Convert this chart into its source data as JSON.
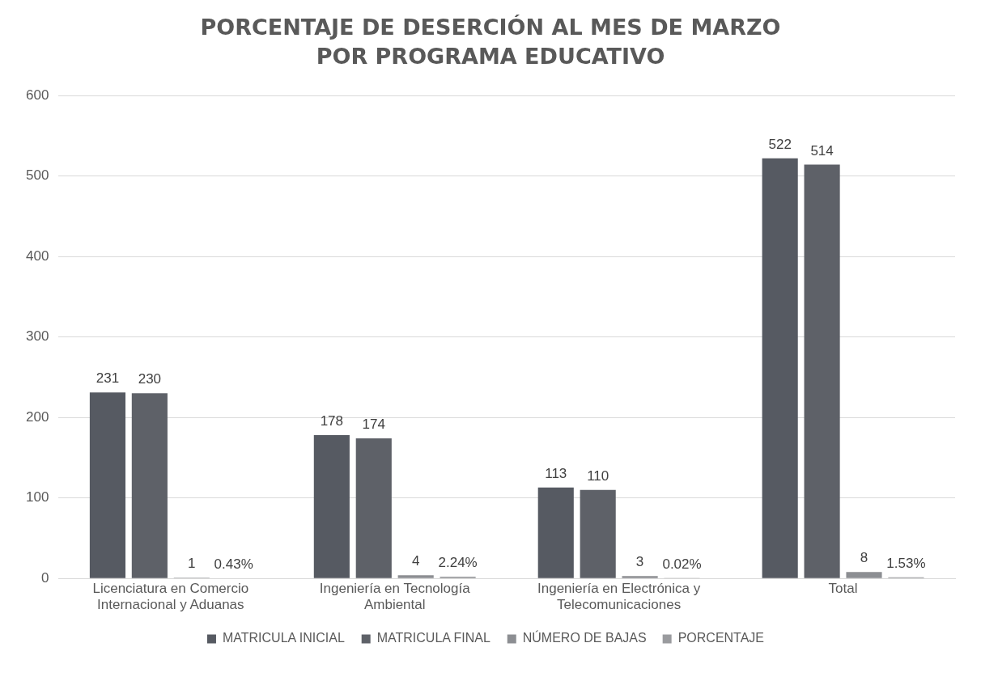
{
  "chart_data": {
    "type": "bar",
    "title": "PORCENTAJE DE DESERCIÓN AL MES DE MARZO POR PROGRAMA EDUCATIVO",
    "categories": [
      "Licenciatura en Comercio Internacional y Aduanas",
      "Ingeniería en Tecnología Ambiental",
      "Ingeniería en Electrónica y Telecomunicaciones",
      "Total"
    ],
    "series": [
      {
        "name": "MATRICULA INICIAL",
        "color": "#565a62",
        "values": [
          231,
          178,
          113,
          522
        ],
        "value_labels": [
          "231",
          "178",
          "113",
          "522"
        ]
      },
      {
        "name": "MATRICULA FINAL",
        "color": "#5e6168",
        "values": [
          230,
          174,
          110,
          514
        ],
        "value_labels": [
          "230",
          "174",
          "110",
          "514"
        ]
      },
      {
        "name": "NÚMERO DE BAJAS",
        "color": "#8c8e92",
        "values": [
          1,
          4,
          3,
          8
        ],
        "value_labels": [
          "1",
          "4",
          "3",
          "8"
        ]
      },
      {
        "name": "PORCENTAJE",
        "color": "#9a9b9e",
        "values": [
          0.43,
          2.24,
          0.02,
          1.53
        ],
        "value_labels": [
          "0.43%",
          "2.24%",
          "0.02%",
          "1.53%"
        ]
      }
    ],
    "ylim": [
      0,
      600
    ],
    "yticks": [
      0,
      100,
      200,
      300,
      400,
      500,
      600
    ],
    "grid": "y",
    "legend": "bottom"
  }
}
